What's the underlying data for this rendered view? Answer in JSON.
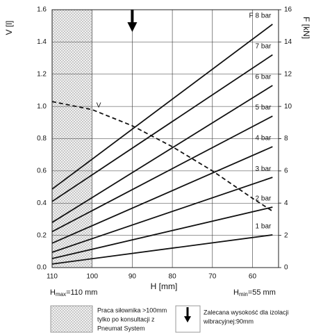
{
  "chart_data": {
    "type": "line",
    "xlabel": "H [mm]",
    "ylabel": "V [l]",
    "y2label": "F [kN]",
    "xlim": [
      110,
      53.5
    ],
    "xticks": [
      110,
      100,
      90,
      80,
      70,
      60
    ],
    "ylim": [
      0,
      1.6
    ],
    "yticks": [
      {
        "value": 0,
        "label": "0.0"
      },
      0.2,
      0.4,
      0.6,
      0.8,
      {
        "value": 1,
        "label": "1.0"
      },
      1.2,
      1.4,
      1.6
    ],
    "y2lim": [
      0,
      16
    ],
    "y2ticks": [
      0,
      2,
      4,
      6,
      8,
      10,
      12,
      14,
      16
    ],
    "grid": true,
    "hatch_range": [
      110,
      100
    ],
    "arrow_x": 90,
    "series": [
      {
        "name": "V",
        "color": "#111111",
        "dashed": true,
        "x": [
          110,
          100,
          90,
          80,
          70,
          60,
          55
        ],
        "values": [
          1.03,
          0.98,
          0.88,
          0.75,
          0.6,
          0.43,
          0.35
        ]
      },
      {
        "name": "1 bar",
        "color": "#111111",
        "axis": "y2",
        "x": [
          110,
          55
        ],
        "values": [
          0.22,
          2.03
        ]
      },
      {
        "name": "2 bar",
        "color": "#111111",
        "axis": "y2",
        "x": [
          110,
          55
        ],
        "values": [
          0.56,
          3.75
        ]
      },
      {
        "name": "3 bar",
        "color": "#111111",
        "axis": "y2",
        "x": [
          110,
          55
        ],
        "values": [
          0.95,
          5.6
        ]
      },
      {
        "name": "4 bar",
        "color": "#111111",
        "axis": "y2",
        "x": [
          110,
          55
        ],
        "values": [
          1.51,
          7.5
        ]
      },
      {
        "name": "5 bar",
        "color": "#111111",
        "axis": "y2",
        "x": [
          110,
          55
        ],
        "values": [
          2.23,
          9.4
        ]
      },
      {
        "name": "6 bar",
        "color": "#111111",
        "axis": "y2",
        "x": [
          110,
          55
        ],
        "values": [
          2.8,
          11.3
        ]
      },
      {
        "name": "7 bar",
        "color": "#111111",
        "axis": "y2",
        "x": [
          110,
          55
        ],
        "values": [
          4.1,
          13.2
        ]
      },
      {
        "name": "8 bar",
        "color": "#111111",
        "axis": "y2",
        "x": [
          110,
          55
        ],
        "values": [
          4.87,
          15.1
        ]
      }
    ],
    "f_label": "F",
    "hmax": {
      "text": "H",
      "sub": "max",
      "rest": "=110 mm"
    },
    "hmin": {
      "text": "H",
      "sub": "min",
      "rest": "=55 mm"
    },
    "legend_hatch": [
      "Praca siłownika >100mm",
      "tylko po konsultacji z",
      "Pneumat System"
    ],
    "legend_arrow": [
      "Zalecana wysokość dla izolacji",
      "wibracyjnej:90mm"
    ]
  }
}
